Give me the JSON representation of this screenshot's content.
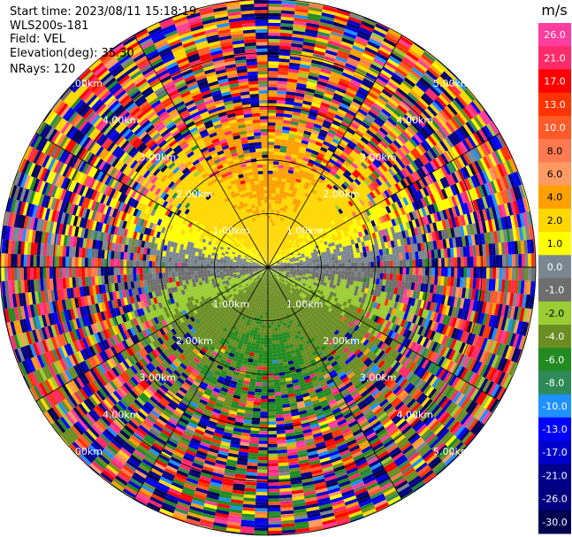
{
  "header": {
    "start_time": "Start time: 2023/08/11 15:18:19",
    "instrument": "WLS200s-181",
    "field": "Field: VEL",
    "elevation": "Elevation(deg): 35.30",
    "nrays": "NRays: 120"
  },
  "chart_data": {
    "type": "heatmap",
    "projection": "polar-ppi",
    "nrays": 120,
    "range_km_max": 5.0,
    "range_rings_km": [
      1.0,
      2.0,
      3.0,
      4.0,
      5.0
    ],
    "ring_labels": [
      "1.00km",
      "2.00km",
      "3.00km",
      "4.00km",
      "5.00km"
    ],
    "radial_spokes": 12,
    "wind_pattern": {
      "toward_azimuth_deg": 0,
      "peak_radial_velocity_ms": 4.0,
      "noise_starts_km": 1.6,
      "full_noise_km": 3.2
    },
    "colorbar": {
      "unit": "m/s",
      "tick_labels": [
        "26.0",
        "21.0",
        "17.0",
        "13.0",
        "10.0",
        "8.0",
        "6.0",
        "4.0",
        "2.0",
        "1.0",
        "0.0",
        "-1.0",
        "-2.0",
        "-4.0",
        "-6.0",
        "-8.0",
        "-10.0",
        "-13.0",
        "-17.0",
        "-21.0",
        "-26.0",
        "-30.0"
      ],
      "bins": [
        {
          "min": 26.0,
          "max": 30.0,
          "color": "#ff3d9e"
        },
        {
          "min": 21.0,
          "max": 26.0,
          "color": "#ff2a6a"
        },
        {
          "min": 17.0,
          "max": 21.0,
          "color": "#ff0000"
        },
        {
          "min": 13.0,
          "max": 17.0,
          "color": "#ff3300"
        },
        {
          "min": 10.0,
          "max": 13.0,
          "color": "#ff5a28"
        },
        {
          "min": 8.0,
          "max": 10.0,
          "color": "#ff7a50"
        },
        {
          "min": 6.0,
          "max": 8.0,
          "color": "#ff9a62"
        },
        {
          "min": 4.0,
          "max": 6.0,
          "color": "#ffa000"
        },
        {
          "min": 2.0,
          "max": 4.0,
          "color": "#ffd700"
        },
        {
          "min": 1.0,
          "max": 2.0,
          "color": "#ffff00"
        },
        {
          "min": 0.0,
          "max": 1.0,
          "color": "#7a8790"
        },
        {
          "min": -1.0,
          "max": 0.0,
          "color": "#6e6e6e"
        },
        {
          "min": -2.0,
          "max": -1.0,
          "color": "#9acd32"
        },
        {
          "min": -4.0,
          "max": -2.0,
          "color": "#6b8e23"
        },
        {
          "min": -6.0,
          "max": -4.0,
          "color": "#228b22"
        },
        {
          "min": -8.0,
          "max": -6.0,
          "color": "#2e8b57"
        },
        {
          "min": -10.0,
          "max": -8.0,
          "color": "#1e90ff"
        },
        {
          "min": -13.0,
          "max": -10.0,
          "color": "#0000ff"
        },
        {
          "min": -17.0,
          "max": -13.0,
          "color": "#0000cd"
        },
        {
          "min": -21.0,
          "max": -17.0,
          "color": "#00008b"
        },
        {
          "min": -26.0,
          "max": -21.0,
          "color": "#000080"
        },
        {
          "min": -30.0,
          "max": -26.0,
          "color": "#000050"
        }
      ]
    }
  }
}
